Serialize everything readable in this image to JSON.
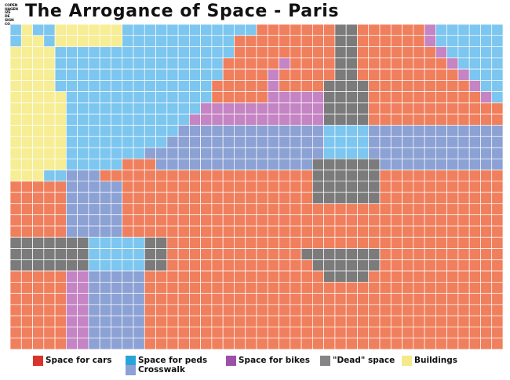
{
  "logo": {
    "lines": [
      "COPEN",
      "HAGEN",
      "IZE",
      "DE",
      "SIGN",
      "CO"
    ]
  },
  "title": "The Arrogance of Space - Paris",
  "colors": {
    "cars": "#f07f5d",
    "peds": "#7cc6ef",
    "bikes": "#c584c4",
    "dead": "#7b7b7b",
    "buildings": "#f6ed94",
    "crosswalk": "#8ca1d4",
    "gridline": "#ffffff"
  },
  "legend": {
    "cars": {
      "label": "Space for cars",
      "swatch": "#d9342b"
    },
    "peds": {
      "label": "Space for peds",
      "swatch": "#2aa3dc"
    },
    "crosswalk": {
      "label": "Crosswalk",
      "swatch": "#8ca1d4"
    },
    "bikes": {
      "label": "Space for bikes",
      "swatch": "#9b51a8"
    },
    "dead": {
      "label": "\"Dead\" space",
      "swatch": "#858585"
    },
    "buildings": {
      "label": "Buildings",
      "swatch": "#f3ea8c"
    }
  }
}
